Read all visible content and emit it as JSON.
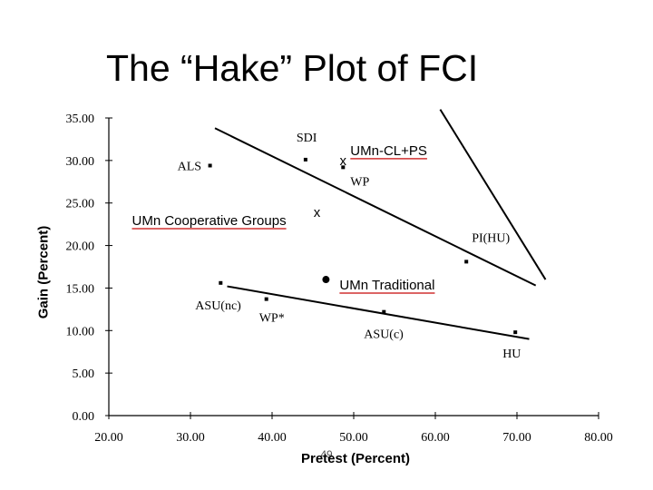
{
  "chart_data": {
    "type": "scatter",
    "title": "The “Hake” Plot of FCI",
    "xlabel": "Pretest (Percent)",
    "ylabel": "Gain (Percent)",
    "xlim": [
      20,
      80
    ],
    "ylim": [
      0,
      35
    ],
    "x_ticks": [
      "20.00",
      "30.00",
      "40.00",
      "50.00",
      "60.00",
      "70.00",
      "80.00"
    ],
    "y_ticks": [
      "0.00",
      "5.00",
      "10.00",
      "15.00",
      "20.00",
      "25.00",
      "30.00",
      "35.00"
    ],
    "grid": false,
    "points": [
      {
        "label": "ALS",
        "x": 32.4,
        "y": 29.4,
        "marker": "square"
      },
      {
        "label": "SDI",
        "x": 44.1,
        "y": 30.1,
        "marker": "square"
      },
      {
        "label": "WP",
        "x": 48.7,
        "y": 29.2,
        "marker": "square"
      },
      {
        "label": "UMn-CL+PS",
        "x": 48.7,
        "y": 30.0,
        "marker": "x"
      },
      {
        "label": "UMn Cooperative Groups",
        "x": 45.5,
        "y": 23.9,
        "marker": "x"
      },
      {
        "label": "PI(HU)",
        "x": 63.8,
        "y": 18.1,
        "marker": "square"
      },
      {
        "label": "UMn Traditional",
        "x": 46.6,
        "y": 16.0,
        "marker": "circle"
      },
      {
        "label": "ASU(nc)",
        "x": 33.7,
        "y": 15.6,
        "marker": "square"
      },
      {
        "label": "WP*",
        "x": 39.3,
        "y": 13.7,
        "marker": "square"
      },
      {
        "label": "ASU(c)",
        "x": 53.7,
        "y": 12.2,
        "marker": "square"
      },
      {
        "label": "HU",
        "x": 69.8,
        "y": 9.8,
        "marker": "square"
      }
    ],
    "lines": [
      {
        "from": [
          33.0,
          33.8
        ],
        "to": [
          72.3,
          15.3
        ]
      },
      {
        "from": [
          60.6,
          36.0
        ],
        "to": [
          73.5,
          16.0
        ]
      },
      {
        "from": [
          34.5,
          15.2
        ],
        "to": [
          71.5,
          9.0
        ]
      }
    ],
    "underlined_labels": [
      "UMn-CL+PS",
      "UMn Cooperative Groups",
      "UMn Traditional"
    ],
    "underline_color": "#d03030"
  },
  "footer": {
    "slide_number": "49"
  }
}
